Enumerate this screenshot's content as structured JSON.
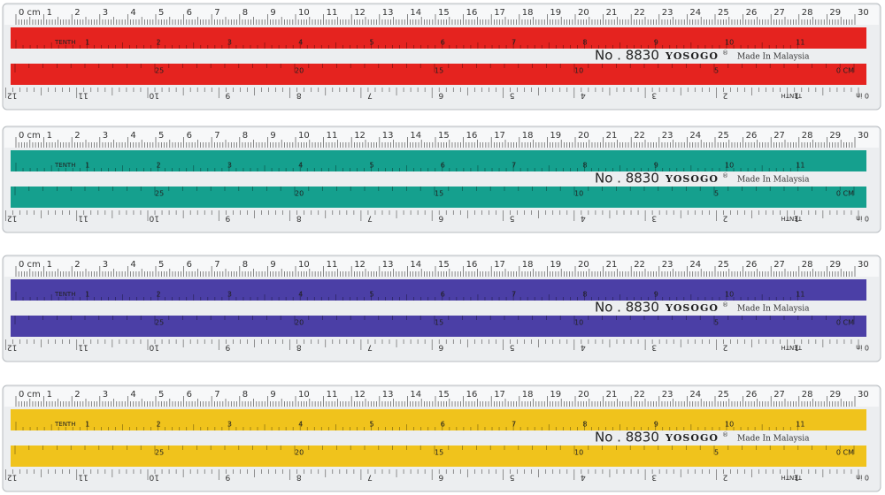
{
  "rulers": [
    {
      "color": "#e5231f"
    },
    {
      "color": "#15a08e"
    },
    {
      "color": "#4b3fa6"
    },
    {
      "color": "#f0c31c"
    }
  ],
  "scale": {
    "cm_labels": [
      "0 cm",
      "1",
      "2",
      "3",
      "4",
      "5",
      "6",
      "7",
      "8",
      "9",
      "10",
      "11",
      "12",
      "13",
      "14",
      "15",
      "16",
      "17",
      "18",
      "19",
      "20",
      "21",
      "22",
      "23",
      "24",
      "25",
      "26",
      "27",
      "28",
      "29",
      "30"
    ],
    "inch_labels": [
      "12",
      "11",
      "10",
      "9",
      "8",
      "7",
      "6",
      "5",
      "4",
      "3",
      "2",
      "1"
    ],
    "inch_zero": "0 in",
    "tenth": "TENTH",
    "band_upper": [
      "1",
      "2",
      "3",
      "4",
      "5",
      "6",
      "7",
      "8",
      "9",
      "10",
      "11"
    ],
    "band_lower": [
      "25",
      "20",
      "15",
      "10",
      "5",
      "0 CM"
    ]
  },
  "label": {
    "model": "No . 8830",
    "brand": "YOSOGO",
    "registered": "®",
    "origin": "Made In Malaysia"
  }
}
